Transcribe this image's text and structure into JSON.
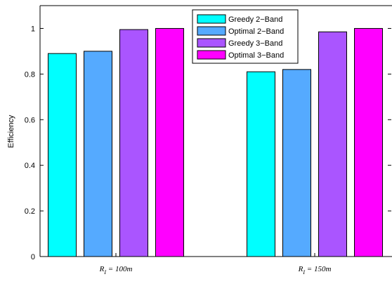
{
  "chart_data": {
    "type": "bar",
    "categories": [
      {
        "main": "R",
        "sub": "I",
        "rest": " = 100m"
      },
      {
        "main": "R",
        "sub": "I",
        "rest": " = 150m"
      }
    ],
    "series": [
      {
        "name": "Greedy 2−Band",
        "values": [
          0.89,
          0.81
        ],
        "color": "#00ffff"
      },
      {
        "name": "Optimal 2−Band",
        "values": [
          0.9,
          0.82
        ],
        "color": "#55aaff"
      },
      {
        "name": "Greedy 3−Band",
        "values": [
          0.995,
          0.985
        ],
        "color": "#aa55ff"
      },
      {
        "name": "Optimal 3−Band",
        "values": [
          1.0,
          1.0
        ],
        "color": "#ff00ff"
      }
    ],
    "ylabel": "Efficiency",
    "ylim": [
      0,
      1.1
    ],
    "yticks": [
      "0",
      "0.2",
      "0.4",
      "0.6",
      "0.8",
      "1"
    ],
    "yticks_values": [
      0,
      0.2,
      0.4,
      0.6,
      0.8,
      1.0
    ],
    "grid": false,
    "legend_position": "top-center"
  }
}
